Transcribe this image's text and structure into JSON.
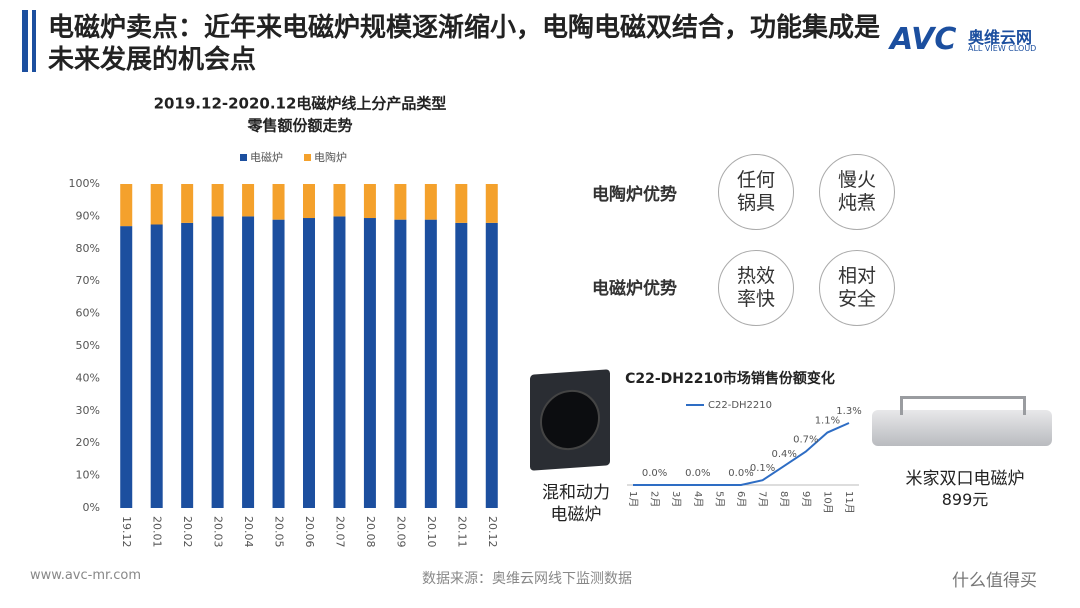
{
  "header": {
    "title": "电磁炉卖点：近年来电磁炉规模逐渐缩小，电陶电磁双结合，功能集成是未来发展的机会点"
  },
  "logo": {
    "mark": "AVC",
    "name": "奥维云网",
    "tagline": "ALL VIEW CLOUD"
  },
  "chart_data": [
    {
      "type": "bar",
      "stacked": true,
      "title": [
        "2019.12-2020.12电磁炉线上分产品类型",
        "零售额份额走势"
      ],
      "categories": [
        "19.12",
        "20.01",
        "20.02",
        "20.03",
        "20.04",
        "20.05",
        "20.06",
        "20.07",
        "20.08",
        "20.09",
        "20.10",
        "20.11",
        "20.12"
      ],
      "series": [
        {
          "name": "电磁炉",
          "color": "#1c4f9f",
          "values": [
            87,
            87.5,
            88,
            90,
            90,
            89,
            89.5,
            90,
            89.5,
            89,
            89,
            88,
            88
          ]
        },
        {
          "name": "电陶炉",
          "color": "#f4a12c",
          "values": [
            13,
            12.5,
            12,
            10,
            10,
            11,
            10.5,
            10,
            10.5,
            11,
            11,
            12,
            12
          ]
        }
      ],
      "ylim": [
        0,
        100
      ],
      "yticks": [
        {
          "value": 0,
          "label": "0%"
        },
        {
          "value": 10,
          "label": "10%"
        },
        {
          "value": 20,
          "label": "20%"
        },
        {
          "value": 30,
          "label": "30%"
        },
        {
          "value": 40,
          "label": "40%"
        },
        {
          "value": 50,
          "label": "50%"
        },
        {
          "value": 60,
          "label": "60%"
        },
        {
          "value": 70,
          "label": "70%"
        },
        {
          "value": 80,
          "label": "80%"
        },
        {
          "value": 90,
          "label": "90%"
        },
        {
          "value": 100,
          "label": "100%"
        }
      ],
      "legend": "top"
    },
    {
      "type": "line",
      "title": "C22-DH2210市场销售份额变化",
      "categories": [
        "1月",
        "2月",
        "3月",
        "4月",
        "5月",
        "6月",
        "7月",
        "8月",
        "9月",
        "10月",
        "11月"
      ],
      "series": [
        {
          "name": "C22-DH2210",
          "color": "#2e6dc4",
          "values": [
            0,
            0,
            0,
            0,
            0,
            0,
            0.1,
            0.4,
            0.7,
            1.1,
            1.3
          ],
          "value_labels": [
            null,
            "0.0%",
            null,
            "0.0%",
            null,
            "0.0%",
            "0.1%",
            "0.4%",
            "0.7%",
            "1.1%",
            "1.3%"
          ]
        }
      ],
      "legend": "top"
    }
  ],
  "advantages": [
    {
      "label": "电陶炉优势",
      "items": [
        "任何锅具",
        "慢火炖煮"
      ]
    },
    {
      "label": "电磁炉优势",
      "items": [
        "热效率快",
        "相对安全"
      ]
    }
  ],
  "products": [
    {
      "name": "混和动力电磁炉"
    },
    {
      "name": "米家双口电磁炉",
      "price": "899元"
    }
  ],
  "footer": {
    "url": "www.avc-mr.com",
    "source": "数据来源：奥维云网线下监测数据",
    "badge": "什么值得买"
  }
}
